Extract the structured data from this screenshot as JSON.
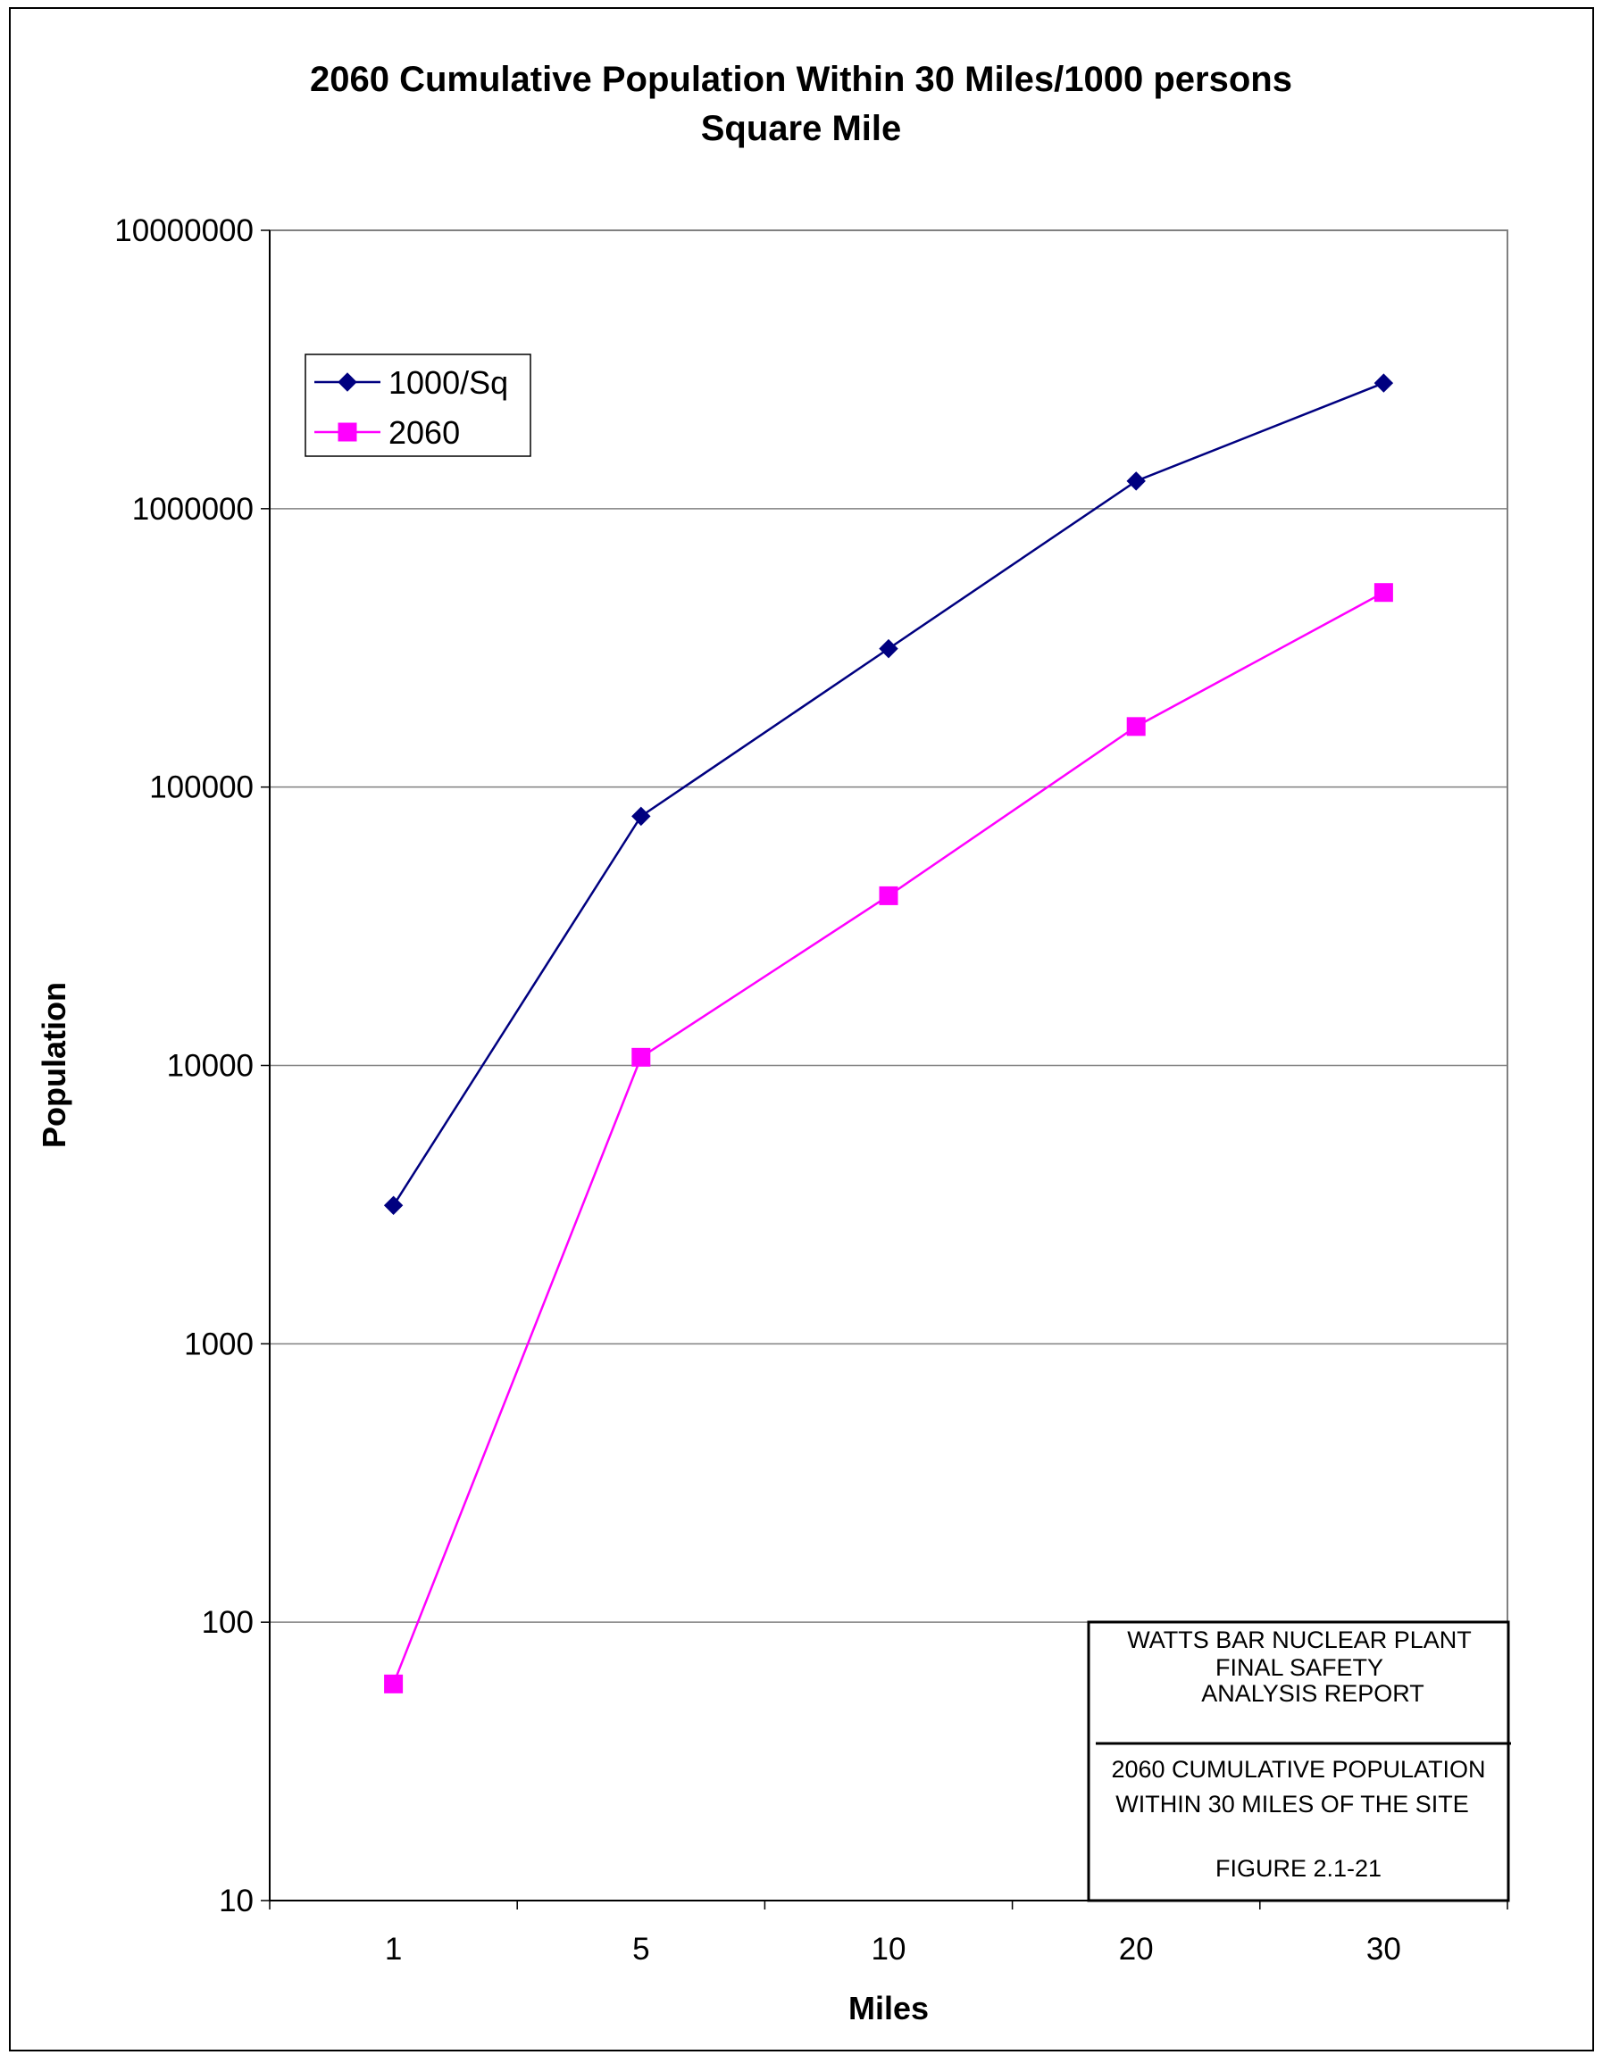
{
  "chart_data": {
    "type": "line",
    "title_line1": "2060 Cumulative Population Within 30 Miles/1000 persons",
    "title_line2": "Square Mile",
    "xlabel": "Miles",
    "ylabel": "Population",
    "categories": [
      "1",
      "5",
      "10",
      "20",
      "30"
    ],
    "yscale": "log",
    "ylim": [
      10,
      10000000
    ],
    "yticks": [
      "10",
      "100",
      "1000",
      "10000",
      "100000",
      "1000000",
      "10000000"
    ],
    "grid": "horizontal",
    "legend_position": "top-left",
    "series": [
      {
        "name": "1000/Sq",
        "color": "#000080",
        "marker": "diamond",
        "values": [
          3142,
          78540,
          314159,
          1256637,
          2827433
        ]
      },
      {
        "name": "2060",
        "color": "#FF00FF",
        "marker": "square",
        "values": [
          60,
          10700,
          40700,
          165000,
          500000
        ]
      }
    ]
  },
  "info_box": {
    "line1": "WATTS BAR NUCLEAR PLANT",
    "line2": "FINAL SAFETY",
    "line3": "ANALYSIS REPORT",
    "line4": "2060 CUMULATIVE POPULATION",
    "line5": "WITHIN 30 MILES OF THE SITE",
    "line6": "FIGURE 2.1-21"
  }
}
